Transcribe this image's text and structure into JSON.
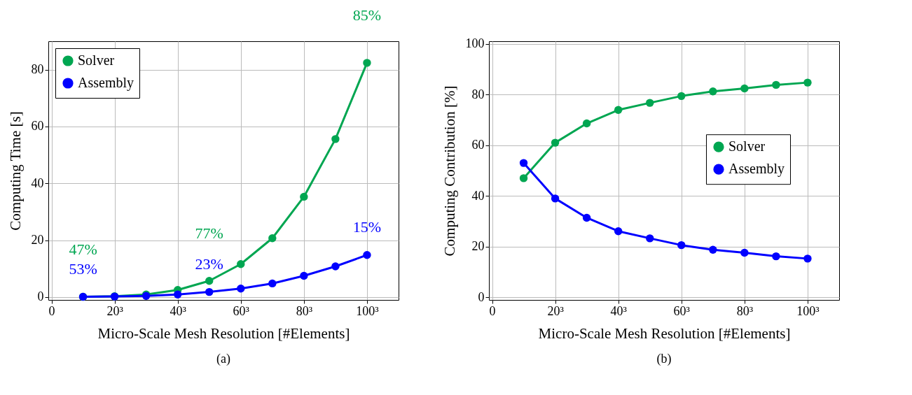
{
  "chart_data": [
    {
      "type": "line",
      "xlabel": "Micro-Scale Mesh Resolution [#Elements]",
      "ylabel": "Computing Time [s]",
      "x": [
        10,
        20,
        30,
        40,
        50,
        60,
        70,
        80,
        90,
        100
      ],
      "xlim": [
        -1,
        110
      ],
      "xticks": [
        0,
        {
          "value": 20,
          "label": "20³"
        },
        {
          "value": 40,
          "label": "40³"
        },
        {
          "value": 60,
          "label": "60³"
        },
        {
          "value": 80,
          "label": "80³"
        },
        {
          "value": 100,
          "label": "100³"
        }
      ],
      "ylim": [
        -1,
        90
      ],
      "yticks": [
        0,
        20,
        40,
        60,
        80
      ],
      "grid": true,
      "legend": "top left",
      "marker": "circle",
      "series": [
        {
          "name": "Solver",
          "color": "#00a651",
          "values": [
            0.1,
            0.3,
            0.9,
            2.5,
            5.7,
            11.6,
            20.7,
            35.3,
            55.6,
            82.4
          ]
        },
        {
          "name": "Assembly",
          "color": "#0000ff",
          "values": [
            0.1,
            0.2,
            0.4,
            0.9,
            1.8,
            3.0,
            4.8,
            7.5,
            10.8,
            14.8
          ]
        }
      ],
      "annotations": [
        {
          "text": "47%",
          "x": 10,
          "y": 0.1
        },
        {
          "text": "53%",
          "x": 10,
          "y": 0.1
        },
        {
          "text": "77%",
          "x": 50,
          "y": 5.7
        },
        {
          "text": "23%",
          "x": 50,
          "y": 1.8
        },
        {
          "text": "85%",
          "x": 100,
          "y": 82.4
        },
        {
          "text": "15%",
          "x": 100,
          "y": 14.8
        },
        "(a)"
      ]
    },
    {
      "type": "line",
      "xlabel": "Micro-Scale Mesh Resolution [#Elements]",
      "ylabel": "Computing Contribution [%]",
      "x": [
        10,
        20,
        30,
        40,
        50,
        60,
        70,
        80,
        90,
        100
      ],
      "xlim": [
        -1,
        110
      ],
      "xticks": [
        0,
        {
          "value": 20,
          "label": "20³"
        },
        {
          "value": 40,
          "label": "40³"
        },
        {
          "value": 60,
          "label": "60³"
        },
        {
          "value": 80,
          "label": "80³"
        },
        {
          "value": 100,
          "label": "100³"
        }
      ],
      "ylim": [
        -1,
        101
      ],
      "yticks": [
        0,
        20,
        40,
        60,
        80,
        100
      ],
      "grid": true,
      "legend": "right",
      "marker": "circle",
      "series": [
        {
          "name": "Solver",
          "color": "#00a651",
          "values": [
            47.0,
            61.0,
            68.6,
            73.9,
            76.7,
            79.4,
            81.2,
            82.4,
            83.8,
            84.7
          ]
        },
        {
          "name": "Assembly",
          "color": "#0000ff",
          "values": [
            53.0,
            39.0,
            31.4,
            26.1,
            23.3,
            20.6,
            18.8,
            17.6,
            16.2,
            15.3
          ]
        }
      ],
      "annotations": [
        "(b)"
      ]
    }
  ]
}
